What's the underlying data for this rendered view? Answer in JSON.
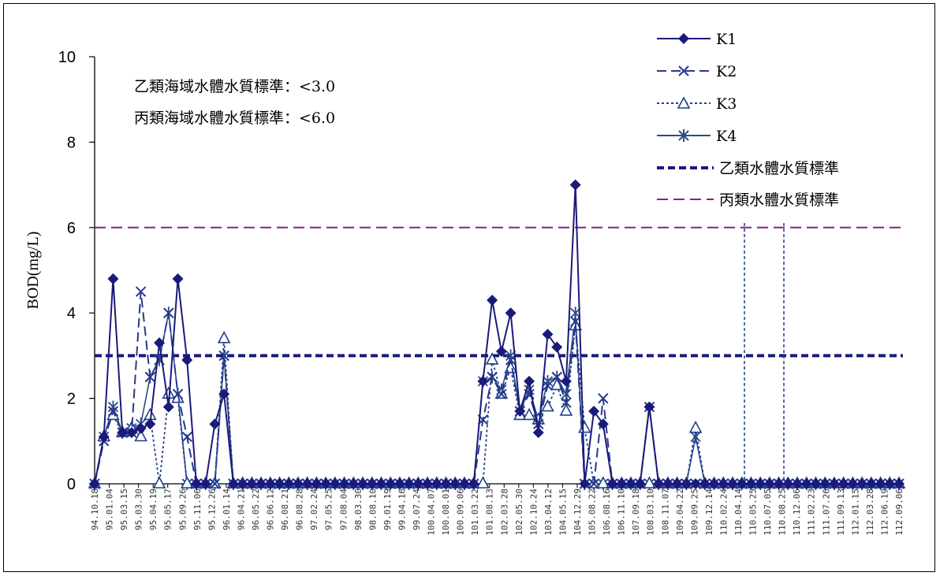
{
  "chart_data": {
    "type": "line",
    "ylabel": "BOD(mg/L)",
    "ylim": [
      0,
      10
    ],
    "yticks": [
      "0",
      "2",
      "4",
      "6",
      "8",
      "10"
    ],
    "grid": false,
    "legend_position": "top-right",
    "annotations": [
      "乙類海域水體水質標準：<3.0",
      "丙類海域水體水質標準：<6.0"
    ],
    "x_labels": [
      "94.10.18",
      "95.01.04",
      "95.03.15",
      "95.03.30",
      "95.04.19",
      "95.05.17",
      "95.09.26",
      "95.11.06",
      "95.12.26",
      "96.01.14",
      "96.04.21",
      "96.05.22",
      "96.06.12",
      "96.08.21",
      "96.08.28",
      "97.02.24",
      "97.05.25",
      "97.08.04",
      "98.03.30",
      "98.08.10",
      "99.01.19",
      "99.04.16",
      "99.07.24",
      "100.04.07",
      "100.08.01",
      "100.09.06",
      "101.03.22",
      "101.08.13",
      "102.03.28",
      "102.05.30",
      "102.10.24",
      "103.04.12",
      "104.05.15",
      "104.12.29",
      "105.08.22",
      "106.08.16",
      "106.11.10",
      "107.09.18",
      "108.03.10",
      "108.11.07",
      "109.04.22",
      "109.09.25",
      "109.12.14",
      "110.02.24",
      "110.04.14",
      "110.05.25",
      "110.07.05",
      "110.08.25",
      "110.12.06",
      "111.02.23",
      "111.07.26",
      "111.09.13",
      "112.01.15",
      "112.03.28",
      "112.06.19",
      "112.09.06"
    ],
    "x_count": 88,
    "series": [
      {
        "name": "K1",
        "values": [
          0,
          1.1,
          4.8,
          1.2,
          1.2,
          1.3,
          1.4,
          3.3,
          1.8,
          4.8,
          2.9,
          0,
          0,
          1.4,
          2.1,
          0,
          0,
          0,
          0,
          0,
          0,
          0,
          0,
          0,
          0,
          0,
          0,
          0,
          0,
          0,
          0,
          0,
          0,
          0,
          0,
          0,
          0,
          0,
          0,
          0,
          0,
          0,
          2.4,
          4.3,
          3.1,
          4.0,
          1.7,
          2.4,
          1.2,
          3.5,
          3.2,
          2.4,
          7.0,
          0,
          1.7,
          1.4,
          0,
          0,
          0,
          0,
          1.8,
          0,
          0,
          0,
          0,
          0,
          0,
          0,
          0,
          0,
          0,
          0,
          0,
          0,
          0,
          0,
          0,
          0,
          0,
          0,
          0,
          0,
          0,
          0,
          0,
          0,
          0,
          0
        ]
      },
      {
        "name": "K2",
        "values": [
          0,
          1.0,
          1.7,
          1.2,
          1.2,
          4.5,
          2.5,
          2.9,
          4.0,
          2.1,
          1.1,
          0,
          0,
          0,
          3.0,
          0,
          0,
          0,
          0,
          0,
          0,
          0,
          0,
          0,
          0,
          0,
          0,
          0,
          0,
          0,
          0,
          0,
          0,
          0,
          0,
          0,
          0,
          0,
          0,
          0,
          0,
          0,
          1.5,
          2.5,
          2.1,
          2.9,
          1.7,
          2.1,
          1.4,
          2.3,
          2.5,
          1.9,
          3.8,
          0,
          0,
          2.0,
          0,
          0,
          0,
          0,
          1.8,
          0,
          0,
          0,
          0,
          0,
          0,
          0,
          0,
          0,
          0,
          0,
          0,
          0,
          0,
          0,
          0,
          0,
          0,
          0,
          0,
          0,
          0,
          0,
          0,
          0,
          0,
          0
        ]
      },
      {
        "name": "K3",
        "values": [
          0,
          1.1,
          1.6,
          1.2,
          1.3,
          1.1,
          1.6,
          0,
          2.1,
          2.0,
          0,
          0,
          0,
          0,
          3.4,
          0,
          0,
          0,
          0,
          0,
          0,
          0,
          0,
          0,
          0,
          0,
          0,
          0,
          0,
          0,
          0,
          0,
          0,
          0,
          0,
          0,
          0,
          0,
          0,
          0,
          0,
          0,
          0,
          2.9,
          2.1,
          2.7,
          1.6,
          1.6,
          1.5,
          1.8,
          2.3,
          1.7,
          3.7,
          1.3,
          0,
          0,
          0,
          0,
          0,
          0,
          0,
          0,
          0,
          0,
          0,
          1.3,
          0,
          0,
          0,
          0,
          0,
          0,
          0,
          0,
          0,
          0,
          0,
          0,
          0,
          0,
          0,
          0,
          0,
          0,
          0,
          0,
          0,
          0
        ]
      },
      {
        "name": "K4",
        "values": [
          0,
          1.1,
          1.8,
          1.2,
          1.3,
          1.4,
          2.5,
          2.9,
          4.0,
          2.1,
          0,
          0,
          0,
          0,
          3.0,
          0,
          0,
          0,
          0,
          0,
          0,
          0,
          0,
          0,
          0,
          0,
          0,
          0,
          0,
          0,
          0,
          0,
          0,
          0,
          0,
          0,
          0,
          0,
          0,
          0,
          0,
          0,
          2.4,
          2.5,
          2.2,
          3.0,
          1.7,
          2.2,
          1.5,
          2.4,
          2.5,
          2.1,
          4.0,
          0,
          0,
          0,
          0,
          0,
          0,
          0,
          0,
          0,
          0,
          0,
          0,
          1.1,
          0,
          0,
          0,
          0,
          0,
          0,
          0,
          0,
          0,
          0,
          0,
          0,
          0,
          0,
          0,
          0,
          0,
          0,
          0,
          0,
          0,
          0
        ]
      },
      {
        "name": "乙類水體水質標準",
        "constant": 3.0
      },
      {
        "name": "丙類水體水質標準",
        "constant": 6.0
      }
    ]
  },
  "colors": {
    "k1": "#1a1a7a",
    "k2": "#283a8c",
    "k3": "#1f3f8a",
    "k4": "#2a4c86",
    "std_b": "#1a1a7a",
    "std_c": "#8b1f8b",
    "vline": "#1f3f8a"
  },
  "icons": {
    "K1": "diamond-marker-icon",
    "K2": "x-marker-icon",
    "K3": "triangle-marker-icon",
    "K4": "star-marker-icon"
  }
}
